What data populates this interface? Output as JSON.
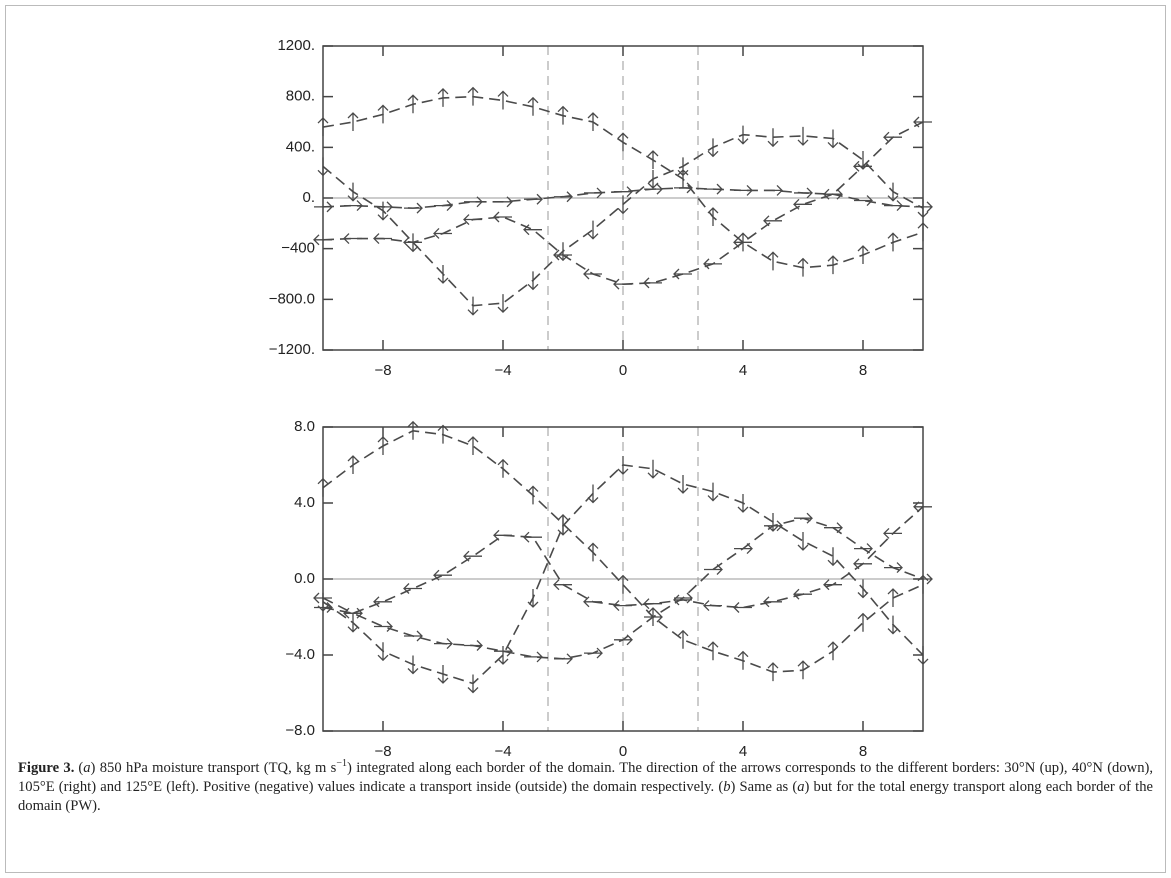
{
  "chart_data": [
    {
      "type": "line",
      "xlim": [
        -10,
        10
      ],
      "xticks": [
        {
          "value": -8,
          "label": "−8"
        },
        {
          "value": -4,
          "label": "−4"
        },
        0,
        4,
        8
      ],
      "ylim": [
        -1200,
        1200
      ],
      "yticks": [
        {
          "value": 1200,
          "label": "1200."
        },
        {
          "value": 800,
          "label": "800."
        },
        {
          "value": 400,
          "label": "400."
        },
        {
          "value": 0,
          "label": "0."
        },
        {
          "value": -400,
          "label": "−400"
        },
        {
          "value": -800,
          "label": "−800.0"
        },
        {
          "value": -1200,
          "label": "−1200."
        }
      ],
      "hlines": [
        0
      ],
      "vlines": [
        -2.5,
        0,
        2.5
      ],
      "x": [
        -10,
        -9,
        -8,
        -7,
        -6,
        -5,
        -4,
        -3,
        -2,
        -1,
        0,
        1,
        2,
        3,
        4,
        5,
        6,
        7,
        8,
        9,
        10
      ],
      "series": [
        {
          "marker": "up",
          "color": "#4a4a4a",
          "values": [
            560,
            600,
            660,
            740,
            790,
            800,
            770,
            720,
            650,
            600,
            440,
            300,
            150,
            -150,
            -350,
            -500,
            -550,
            -530,
            -450,
            -350,
            -270
          ]
        },
        {
          "marker": "down",
          "color": "#4a4a4a",
          "values": [
            250,
            50,
            -100,
            -350,
            -600,
            -850,
            -830,
            -650,
            -420,
            -250,
            -50,
            150,
            250,
            400,
            500,
            480,
            490,
            470,
            300,
            50,
            -80
          ]
        },
        {
          "marker": "right",
          "color": "#4a4a4a",
          "values": [
            -70,
            -60,
            -70,
            -80,
            -60,
            -30,
            -30,
            -10,
            10,
            40,
            50,
            70,
            80,
            70,
            60,
            60,
            40,
            30,
            -20,
            -60,
            -70
          ]
        },
        {
          "marker": "left",
          "color": "#4a4a4a",
          "values": [
            -330,
            -320,
            -320,
            -350,
            -280,
            -170,
            -150,
            -250,
            -450,
            -600,
            -680,
            -670,
            -600,
            -520,
            -350,
            -180,
            -50,
            30,
            250,
            480,
            600
          ]
        }
      ]
    },
    {
      "type": "line",
      "xlim": [
        -10,
        10
      ],
      "xticks": [
        {
          "value": -8,
          "label": "−8"
        },
        {
          "value": -4,
          "label": "−4"
        },
        0,
        4,
        8
      ],
      "ylim": [
        -8,
        8
      ],
      "yticks": [
        {
          "value": 8,
          "label": "8.0"
        },
        {
          "value": 4,
          "label": "4.0"
        },
        {
          "value": 0,
          "label": "0.0"
        },
        {
          "value": -4,
          "label": "−4.0"
        },
        {
          "value": -8,
          "label": "−8.0"
        }
      ],
      "hlines": [
        0
      ],
      "vlines": [
        -2.5,
        0,
        2.5
      ],
      "x": [
        -10,
        -9,
        -8,
        -7,
        -6,
        -5,
        -4,
        -3,
        -2,
        -1,
        0,
        1,
        2,
        3,
        4,
        5,
        6,
        7,
        8,
        9,
        10
      ],
      "series": [
        {
          "marker": "up",
          "color": "#4a4a4a",
          "values": [
            4.8,
            6.0,
            7.0,
            7.8,
            7.6,
            7.0,
            5.8,
            4.4,
            2.9,
            1.4,
            -0.3,
            -2.0,
            -3.2,
            -3.8,
            -4.3,
            -4.9,
            -4.8,
            -3.8,
            -2.3,
            -1.0,
            -0.3
          ]
        },
        {
          "marker": "down",
          "color": "#4a4a4a",
          "values": [
            -1.2,
            -2.3,
            -3.8,
            -4.5,
            -5.0,
            -5.5,
            -4.0,
            -1.0,
            2.8,
            4.5,
            6.0,
            5.8,
            5.0,
            4.6,
            4.0,
            3.0,
            2.0,
            1.2,
            -0.5,
            -2.4,
            -4.0
          ]
        },
        {
          "marker": "right",
          "color": "#4a4a4a",
          "values": [
            -1.5,
            -1.8,
            -2.5,
            -3.0,
            -3.4,
            -3.5,
            -3.8,
            -4.1,
            -4.2,
            -3.9,
            -3.2,
            -2.0,
            -1.0,
            0.5,
            1.6,
            2.8,
            3.2,
            2.7,
            1.6,
            0.6,
            0.0
          ]
        },
        {
          "marker": "left",
          "color": "#4a4a4a",
          "values": [
            -1.0,
            -1.8,
            -1.2,
            -0.5,
            0.2,
            1.2,
            2.3,
            2.2,
            -0.3,
            -1.2,
            -1.4,
            -1.3,
            -1.1,
            -1.4,
            -1.5,
            -1.2,
            -0.8,
            -0.3,
            0.8,
            2.4,
            3.8
          ]
        }
      ]
    }
  ],
  "caption": {
    "label": "Figure 3.",
    "runs": [
      {
        "text": "(",
        "style": "normal"
      },
      {
        "text": "a",
        "style": "italic"
      },
      {
        "text": ") 850 hPa moisture transport (TQ, kg m s",
        "style": "normal"
      },
      {
        "text": "−1",
        "style": "sup"
      },
      {
        "text": ") integrated along each border of the domain. The direction of the arrows corresponds to the different borders: 30°N (up), 40°N (down), 105°E (right) and 125°E (left). Positive (negative) values indicate a transport inside (outside) the domain respectively. (",
        "style": "normal"
      },
      {
        "text": "b",
        "style": "italic"
      },
      {
        "text": ") Same as (",
        "style": "normal"
      },
      {
        "text": "a",
        "style": "italic"
      },
      {
        "text": ") but for the total energy transport along each border of the domain (PW).",
        "style": "normal"
      }
    ]
  }
}
